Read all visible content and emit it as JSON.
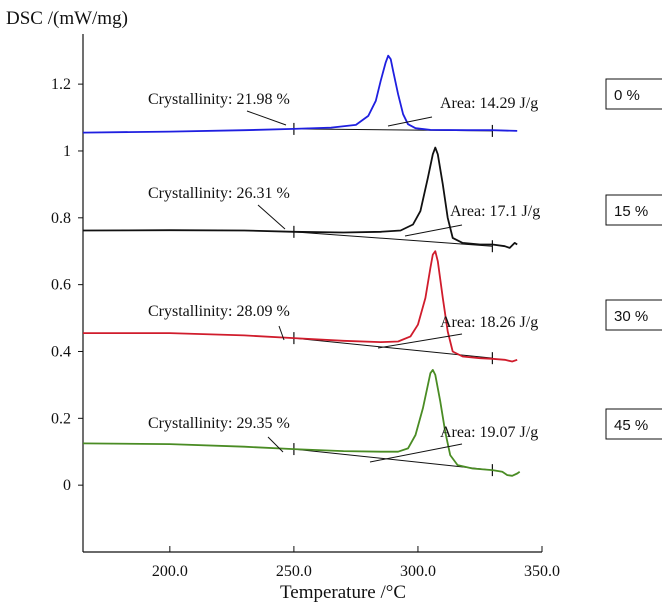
{
  "chart_data": {
    "type": "line",
    "ylabel": "DSC /(mW/mg)",
    "xlabel": "Temperature /°C",
    "xlim": [
      165,
      350
    ],
    "ylim": [
      -0.2,
      1.35
    ],
    "x_ticks": [
      200.0,
      250.0,
      300.0,
      350.0
    ],
    "x_tick_labels": [
      "200.0",
      "250.0",
      "300.0",
      "350.0"
    ],
    "y_ticks": [
      0,
      0.2,
      0.4,
      0.6,
      0.8,
      1,
      1.2
    ],
    "y_tick_labels": [
      "0",
      "0.2",
      "0.4",
      "0.6",
      "0.8",
      "1",
      "1.2"
    ],
    "grid": false,
    "series": [
      {
        "name": "0 %",
        "color": "#1f1fe0",
        "points": [
          [
            165,
            1.055
          ],
          [
            200,
            1.058
          ],
          [
            230,
            1.062
          ],
          [
            250,
            1.066
          ],
          [
            265,
            1.07
          ],
          [
            275,
            1.078
          ],
          [
            280,
            1.105
          ],
          [
            283,
            1.15
          ],
          [
            285,
            1.21
          ],
          [
            287,
            1.265
          ],
          [
            288,
            1.285
          ],
          [
            289,
            1.275
          ],
          [
            290,
            1.24
          ],
          [
            292,
            1.17
          ],
          [
            294,
            1.11
          ],
          [
            296,
            1.08
          ],
          [
            299,
            1.068
          ],
          [
            305,
            1.063
          ],
          [
            320,
            1.062
          ],
          [
            330,
            1.062
          ],
          [
            340,
            1.06
          ]
        ],
        "baseline": [
          [
            250,
            1.066
          ],
          [
            330,
            1.06
          ]
        ],
        "crystallinity": "Crystallinity: 21.98 %",
        "area": "Area: 14.29 J/g"
      },
      {
        "name": "15 %",
        "color": "#111111",
        "points": [
          [
            165,
            0.762
          ],
          [
            200,
            0.763
          ],
          [
            230,
            0.762
          ],
          [
            250,
            0.758
          ],
          [
            270,
            0.756
          ],
          [
            285,
            0.758
          ],
          [
            293,
            0.762
          ],
          [
            298,
            0.78
          ],
          [
            301,
            0.82
          ],
          [
            304,
            0.92
          ],
          [
            306,
            0.99
          ],
          [
            307,
            1.01
          ],
          [
            308,
            0.99
          ],
          [
            310,
            0.9
          ],
          [
            312,
            0.8
          ],
          [
            314,
            0.74
          ],
          [
            318,
            0.725
          ],
          [
            325,
            0.72
          ],
          [
            330,
            0.72
          ],
          [
            335,
            0.715
          ],
          [
            337,
            0.71
          ],
          [
            339,
            0.725
          ],
          [
            340,
            0.72
          ]
        ],
        "baseline": [
          [
            250,
            0.758
          ],
          [
            330,
            0.715
          ]
        ],
        "crystallinity": "Crystallinity: 26.31 %",
        "area": "Area: 17.1 J/g"
      },
      {
        "name": "30 %",
        "color": "#d01c2c",
        "points": [
          [
            165,
            0.455
          ],
          [
            200,
            0.455
          ],
          [
            230,
            0.448
          ],
          [
            250,
            0.44
          ],
          [
            270,
            0.432
          ],
          [
            285,
            0.428
          ],
          [
            292,
            0.43
          ],
          [
            297,
            0.445
          ],
          [
            300,
            0.48
          ],
          [
            303,
            0.56
          ],
          [
            305,
            0.65
          ],
          [
            306,
            0.69
          ],
          [
            307,
            0.7
          ],
          [
            308,
            0.67
          ],
          [
            310,
            0.56
          ],
          [
            312,
            0.46
          ],
          [
            314,
            0.4
          ],
          [
            318,
            0.385
          ],
          [
            325,
            0.38
          ],
          [
            330,
            0.378
          ],
          [
            335,
            0.375
          ],
          [
            338,
            0.37
          ],
          [
            340,
            0.375
          ]
        ],
        "baseline": [
          [
            250,
            0.44
          ],
          [
            330,
            0.38
          ]
        ],
        "crystallinity": "Crystallinity: 28.09 %",
        "area": "Area: 18.26 J/g"
      },
      {
        "name": "45 %",
        "color": "#4a8c24",
        "points": [
          [
            165,
            0.125
          ],
          [
            200,
            0.123
          ],
          [
            230,
            0.115
          ],
          [
            250,
            0.108
          ],
          [
            270,
            0.102
          ],
          [
            285,
            0.1
          ],
          [
            292,
            0.1
          ],
          [
            296,
            0.11
          ],
          [
            299,
            0.15
          ],
          [
            302,
            0.23
          ],
          [
            304,
            0.3
          ],
          [
            305,
            0.335
          ],
          [
            306,
            0.345
          ],
          [
            307,
            0.33
          ],
          [
            309,
            0.25
          ],
          [
            311,
            0.16
          ],
          [
            313,
            0.09
          ],
          [
            316,
            0.06
          ],
          [
            322,
            0.05
          ],
          [
            330,
            0.045
          ],
          [
            334,
            0.04
          ],
          [
            336,
            0.03
          ],
          [
            338,
            0.028
          ],
          [
            340,
            0.035
          ],
          [
            341,
            0.04
          ]
        ],
        "baseline": [
          [
            250,
            0.108
          ],
          [
            330,
            0.045
          ]
        ],
        "crystallinity": "Crystallinity: 29.35 %",
        "area": "Area: 19.07 J/g"
      }
    ]
  }
}
